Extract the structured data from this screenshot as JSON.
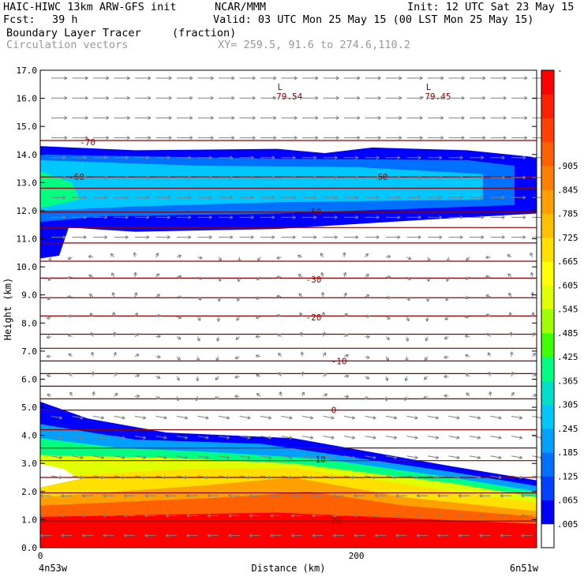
{
  "header": {
    "model": "HAIC-HIWC 13km ARW-GFS init",
    "org": "NCAR/MMM",
    "init": "Init: 12 UTC Sat 23 May 15",
    "fcst_label": "Fcst:",
    "fcst_value": "39 h",
    "valid": "Valid: 03 UTC Mon 25 May 15 (00 LST Mon 25 May 15)",
    "field": "Boundary Layer Tracer",
    "field_units": "(fraction)",
    "vectors": "Circulation vectors",
    "xy": "XY= 259.5, 91.6 to 274.6,110.2"
  },
  "colors": {
    "contour": "#8b0000",
    "vector": "#808080",
    "palette": [
      "#ffffff",
      "#0000ff",
      "#0040ff",
      "#0070ff",
      "#00a0ff",
      "#00c8ff",
      "#00e0c8",
      "#00ff80",
      "#40ff00",
      "#a0ff00",
      "#e0ff00",
      "#ffff00",
      "#ffe000",
      "#ffc000",
      "#ffa000",
      "#ff8000",
      "#ff6000",
      "#ff4000",
      "#ff2000",
      "#ff0000"
    ]
  },
  "chart_data": {
    "type": "heatmap",
    "title": "Boundary Layer Tracer",
    "xlabel": "Distance (km)",
    "ylabel": "Height (km)",
    "xlim": [
      0,
      314
    ],
    "ylim": [
      0,
      17
    ],
    "x_ticks": [
      {
        "value": 0,
        "label": "0"
      },
      {
        "value": 200,
        "label": "200"
      }
    ],
    "x_end_labels": {
      "left": "4n53w",
      "right": "6n51w"
    },
    "y_ticks": [
      "0.0",
      "1.0",
      "2.0",
      "3.0",
      "4.0",
      "5.0",
      "6.0",
      "7.0",
      "8.0",
      "9.0",
      "10.0",
      "11.0",
      "12.0",
      "13.0",
      "14.0",
      "15.0",
      "16.0",
      "17.0"
    ],
    "colorbar_labels": [
      ".005",
      ".065",
      ".125",
      ".185",
      ".245",
      ".305",
      ".365",
      ".425",
      ".485",
      ".545",
      ".605",
      ".665",
      ".725",
      ".785",
      ".845",
      ".905",
      "-"
    ],
    "temperature_contours": [
      {
        "label": "-70",
        "x": 25,
        "y": 14.45
      },
      {
        "label": "-60",
        "x": 18,
        "y": 13.2
      },
      {
        "label": "-60",
        "x": 210,
        "y": 13.2
      },
      {
        "label": "-50",
        "x": 168,
        "y": 11.95
      },
      {
        "label": "-30",
        "x": 168,
        "y": 9.55
      },
      {
        "label": "-20",
        "x": 168,
        "y": 8.2
      },
      {
        "label": "-10",
        "x": 184,
        "y": 6.65
      },
      {
        "label": "0",
        "x": 184,
        "y": 4.9
      },
      {
        "label": "10",
        "x": 174,
        "y": 3.15
      },
      {
        "label": "20",
        "x": 184,
        "y": 0.95
      }
    ],
    "pressure_lows": [
      {
        "marker": "L",
        "value": "-79.54",
        "x": 150,
        "y": 16.3
      },
      {
        "marker": "L",
        "value": "-79.45",
        "x": 244,
        "y": 16.3
      }
    ]
  }
}
